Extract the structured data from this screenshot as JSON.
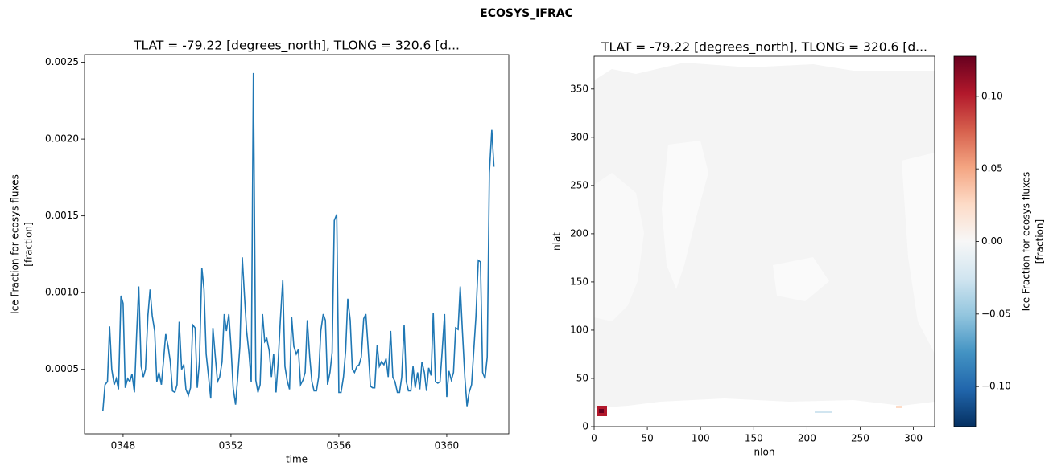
{
  "title": "ECOSYS_IFRAC",
  "chart_data": [
    {
      "type": "line",
      "title": "TLAT = -79.22 [degrees_north], TLONG = 320.6 [d...",
      "xlabel": "time",
      "ylabel": [
        "Ice Fraction for ecosys fluxes",
        "[fraction]"
      ],
      "color": "#1f77b4",
      "xlim": [
        346.57,
        362.3
      ],
      "xticks": [
        {
          "value": 348,
          "label": "0348"
        },
        {
          "value": 352,
          "label": "0352"
        },
        {
          "value": 356,
          "label": "0356"
        },
        {
          "value": 360,
          "label": "0360"
        }
      ],
      "ylim": [
        8e-05,
        0.00255
      ],
      "yticks": [
        {
          "value": 0.0005,
          "label": "0.0005"
        },
        {
          "value": 0.001,
          "label": "0.0010"
        },
        {
          "value": 0.0015,
          "label": "0.0015"
        },
        {
          "value": 0.002,
          "label": "0.0020"
        },
        {
          "value": 0.0025,
          "label": "0.0025"
        }
      ],
      "x": [
        347.25,
        347.33,
        347.42,
        347.5,
        347.58,
        347.67,
        347.75,
        347.83,
        347.92,
        348,
        348.08,
        348.17,
        348.25,
        348.33,
        348.42,
        348.5,
        348.58,
        348.67,
        348.75,
        348.83,
        348.92,
        349,
        349.08,
        349.17,
        349.25,
        349.33,
        349.42,
        349.5,
        349.58,
        349.67,
        349.75,
        349.83,
        349.92,
        350,
        350.08,
        350.17,
        350.25,
        350.33,
        350.42,
        350.5,
        350.58,
        350.67,
        350.75,
        350.83,
        350.92,
        351,
        351.08,
        351.17,
        351.25,
        351.33,
        351.42,
        351.5,
        351.58,
        351.67,
        351.75,
        351.83,
        351.92,
        352,
        352.08,
        352.17,
        352.25,
        352.33,
        352.42,
        352.5,
        352.58,
        352.67,
        352.75,
        352.83,
        352.92,
        353,
        353.08,
        353.17,
        353.25,
        353.33,
        353.42,
        353.5,
        353.58,
        353.67,
        353.75,
        353.83,
        353.92,
        354,
        354.08,
        354.17,
        354.25,
        354.33,
        354.42,
        354.5,
        354.58,
        354.67,
        354.75,
        354.83,
        354.92,
        355,
        355.08,
        355.17,
        355.25,
        355.33,
        355.42,
        355.5,
        355.58,
        355.67,
        355.75,
        355.83,
        355.92,
        356,
        356.08,
        356.17,
        356.25,
        356.33,
        356.42,
        356.5,
        356.58,
        356.67,
        356.75,
        356.83,
        356.92,
        357,
        357.08,
        357.17,
        357.25,
        357.33,
        357.42,
        357.5,
        357.58,
        357.67,
        357.75,
        357.83,
        357.92,
        358,
        358.08,
        358.17,
        358.25,
        358.33,
        358.42,
        358.5,
        358.58,
        358.67,
        358.75,
        358.83,
        358.92,
        359,
        359.08,
        359.17,
        359.25,
        359.33,
        359.42,
        359.5,
        359.58,
        359.67,
        359.75,
        359.83,
        359.92,
        360,
        360.08,
        360.17,
        360.25,
        360.33,
        360.42,
        360.5,
        360.58,
        360.67,
        360.75,
        360.83,
        360.92,
        361,
        361.08,
        361.17,
        361.25,
        361.33,
        361.42,
        361.5,
        361.58,
        361.67,
        361.75
      ],
      "values": [
        0.00023,
        0.0004,
        0.00042,
        0.00078,
        0.0005,
        0.0004,
        0.00044,
        0.00037,
        0.00098,
        0.00093,
        0.00038,
        0.00044,
        0.00042,
        0.00047,
        0.00035,
        0.00072,
        0.00104,
        0.00052,
        0.00045,
        0.0005,
        0.00085,
        0.00102,
        0.00085,
        0.00075,
        0.00042,
        0.00048,
        0.0004,
        0.00056,
        0.00073,
        0.00065,
        0.00055,
        0.00036,
        0.00035,
        0.0004,
        0.00081,
        0.0005,
        0.00053,
        0.00037,
        0.00033,
        0.00038,
        0.00079,
        0.00077,
        0.00038,
        0.00055,
        0.00116,
        0.00102,
        0.0006,
        0.00045,
        0.00031,
        0.00077,
        0.00058,
        0.00042,
        0.00045,
        0.00055,
        0.00086,
        0.00075,
        0.00086,
        0.00065,
        0.00038,
        0.00027,
        0.00045,
        0.00065,
        0.00123,
        0.00098,
        0.00075,
        0.0006,
        0.00042,
        0.00243,
        0.00043,
        0.00035,
        0.0004,
        0.00086,
        0.00068,
        0.0007,
        0.00062,
        0.00045,
        0.0006,
        0.00035,
        0.00055,
        0.00082,
        0.00108,
        0.00052,
        0.00043,
        0.00037,
        0.00084,
        0.00065,
        0.0006,
        0.00063,
        0.0004,
        0.00043,
        0.00048,
        0.00082,
        0.00058,
        0.00042,
        0.00036,
        0.00036,
        0.00045,
        0.00075,
        0.00086,
        0.00082,
        0.0004,
        0.00048,
        0.00061,
        0.00147,
        0.00151,
        0.00035,
        0.00035,
        0.00045,
        0.00062,
        0.00096,
        0.00082,
        0.0005,
        0.00048,
        0.00052,
        0.00053,
        0.00058,
        0.00083,
        0.00086,
        0.00065,
        0.00039,
        0.00038,
        0.00038,
        0.00066,
        0.00052,
        0.00055,
        0.00053,
        0.00057,
        0.00045,
        0.00075,
        0.00045,
        0.00042,
        0.00035,
        0.00035,
        0.00045,
        0.00079,
        0.00042,
        0.00036,
        0.00036,
        0.00052,
        0.00038,
        0.00048,
        0.00037,
        0.00055,
        0.00048,
        0.00036,
        0.00051,
        0.00046,
        0.00087,
        0.00042,
        0.00041,
        0.00042,
        0.00062,
        0.00086,
        0.00032,
        0.00049,
        0.00043,
        0.00048,
        0.00077,
        0.00076,
        0.00104,
        0.00075,
        0.00045,
        0.00026,
        0.00035,
        0.0004,
        0.00062,
        0.00084,
        0.00121,
        0.0012,
        0.00048,
        0.00044,
        0.00058,
        0.00178,
        0.00206,
        0.00182
      ]
    },
    {
      "type": "heatmap",
      "title": "TLAT = -79.22 [degrees_north], TLONG = 320.6 [d...",
      "xlabel": "nlon",
      "ylabel": "nlat",
      "xlim": [
        0,
        320
      ],
      "xticks": [
        0,
        50,
        100,
        150,
        200,
        250,
        300
      ],
      "ylim": [
        0,
        384
      ],
      "yticks": [
        0,
        50,
        100,
        150,
        200,
        250,
        300,
        350
      ],
      "colorbar_label": [
        "Ice Fraction for ecosys fluxes",
        "[fraction]"
      ],
      "clim": [
        -0.1276,
        0.1276
      ],
      "cticks": [
        {
          "value": -0.1,
          "label": "−0.10"
        },
        {
          "value": -0.05,
          "label": "−0.05"
        },
        {
          "value": 0,
          "label": "0.00"
        },
        {
          "value": 0.05,
          "label": "0.05"
        },
        {
          "value": 0.1,
          "label": "0.10"
        }
      ]
    }
  ]
}
